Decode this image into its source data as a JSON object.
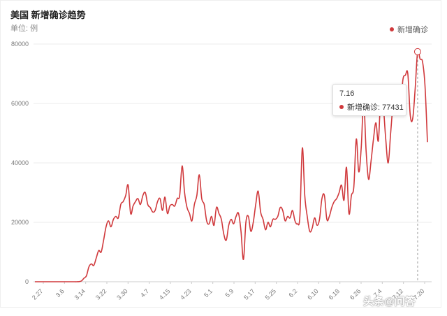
{
  "header": {
    "title": "美国 新增确诊趋势",
    "unit": "单位: 例",
    "legend_label": "新增确诊"
  },
  "tooltip": {
    "date": "7.16",
    "series_label": "新增确诊: 77431"
  },
  "watermark": "头条@问答",
  "colors": {
    "series": "#d0393c",
    "grid": "#ebebeb",
    "axis_text": "#777777"
  },
  "chart_data": {
    "type": "line",
    "title": "美国 新增确诊趋势",
    "ylabel": "单位: 例",
    "ylim": [
      0,
      80000
    ],
    "yticks": [
      0,
      20000,
      40000,
      60000,
      80000
    ],
    "xticks": [
      "2.27",
      "3.6",
      "3.14",
      "3.22",
      "3.30",
      "4.7",
      "4.15",
      "4.23",
      "5.1",
      "5.9",
      "5.17",
      "5.25",
      "6.2",
      "6.10",
      "6.18",
      "6.26",
      "7.4",
      "7.12",
      "7.20"
    ],
    "legend": "top-right",
    "grid": true,
    "highlight": {
      "date": "7.16",
      "value": 77431
    },
    "series": [
      {
        "name": "新增确诊",
        "values": [
          0,
          0,
          0,
          0,
          0,
          0,
          0,
          0,
          0,
          0,
          0,
          0,
          0,
          0,
          0,
          0,
          0,
          0,
          50,
          300,
          1200,
          2000,
          5000,
          6000,
          5500,
          8000,
          10500,
          10000,
          14000,
          18500,
          20500,
          18500,
          21000,
          22000,
          21500,
          26000,
          27000,
          29000,
          32500,
          23000,
          25500,
          27000,
          28000,
          26000,
          29000,
          30000,
          26000,
          25000,
          23500,
          24000,
          27000,
          28000,
          24000,
          28500,
          23000,
          25500,
          26000,
          25500,
          28000,
          29000,
          39000,
          30000,
          25000,
          23000,
          20500,
          26000,
          29000,
          36000,
          28000,
          26000,
          20500,
          19500,
          22000,
          19000,
          25000,
          23000,
          21000,
          16000,
          14000,
          19000,
          21000,
          19500,
          22000,
          23000,
          17000,
          7500,
          20000,
          22000,
          17000,
          20000,
          26000,
          30500,
          23500,
          21000,
          17500,
          20000,
          18500,
          21000,
          21000,
          22000,
          25000,
          24000,
          20500,
          22000,
          21500,
          24000,
          20500,
          19500,
          22000,
          45000,
          29000,
          22000,
          17000,
          18000,
          21500,
          19000,
          21000,
          28000,
          29000,
          21000,
          22000,
          25000,
          27000,
          28000,
          30000,
          32500,
          27500,
          38500,
          23000,
          29000,
          32000,
          48000,
          37000,
          45000,
          60500,
          44000,
          34500,
          40500,
          48000,
          53500,
          47500,
          62500,
          59000,
          48000,
          40000,
          50000,
          60000,
          64500,
          62000,
          58500,
          68000,
          69500,
          70000,
          56000,
          55000,
          65000,
          77431,
          75000,
          74000,
          66000,
          47000
        ]
      }
    ]
  }
}
